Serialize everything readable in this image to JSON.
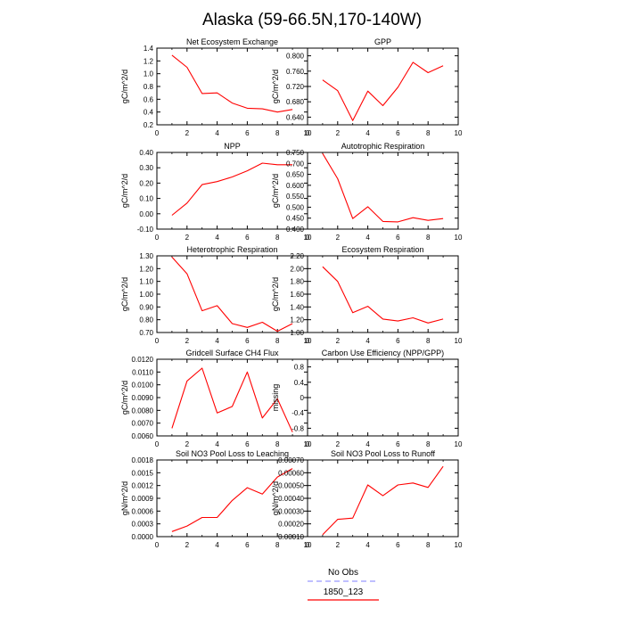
{
  "title": "Alaska (59-66.5N,170-140W)",
  "legend": {
    "entries": [
      {
        "label": "No Obs",
        "color": "#9999ff",
        "dashed": true
      },
      {
        "label": "1850_123",
        "color": "#ff0000",
        "dashed": false
      }
    ]
  },
  "chart_data": [
    {
      "type": "line",
      "title": "Net Ecosystem Exchange",
      "ylabel": "gC/m^2/d",
      "xlabel": "",
      "xlim": [
        0,
        10
      ],
      "ylim": [
        0.2,
        1.4
      ],
      "xticks": [
        "0",
        "2",
        "4",
        "6",
        "8",
        "10"
      ],
      "yticks": [
        "0.2",
        "0.4",
        "0.6",
        "0.8",
        "1.0",
        "1.2",
        "1.4"
      ],
      "x": [
        1,
        2,
        3,
        4,
        5,
        6,
        7,
        8,
        9
      ],
      "series": [
        {
          "color": "#ff0000",
          "values": [
            1.29,
            1.1,
            0.69,
            0.7,
            0.54,
            0.46,
            0.45,
            0.4,
            0.44
          ]
        }
      ],
      "legend": "bottom-center"
    },
    {
      "type": "line",
      "title": "GPP",
      "ylabel": "gC/m^2/d",
      "xlabel": "",
      "xlim": [
        0,
        10
      ],
      "ylim": [
        0.62,
        0.82
      ],
      "xticks": [
        "0",
        "2",
        "4",
        "6",
        "8",
        "10"
      ],
      "yticks": [
        "0.640",
        "0.680",
        "0.720",
        "0.760",
        "0.800"
      ],
      "x": [
        1,
        2,
        3,
        4,
        5,
        6,
        7,
        8,
        9
      ],
      "series": [
        {
          "color": "#ff0000",
          "values": [
            0.737,
            0.709,
            0.631,
            0.708,
            0.67,
            0.718,
            0.783,
            0.756,
            0.774
          ]
        }
      ],
      "legend": "bottom-center"
    },
    {
      "type": "line",
      "title": "NPP",
      "ylabel": "gC/m^2/d",
      "xlabel": "",
      "xlim": [
        0,
        10
      ],
      "ylim": [
        -0.1,
        0.4
      ],
      "xticks": [
        "0",
        "2",
        "4",
        "6",
        "8",
        "10"
      ],
      "yticks": [
        "-0.10",
        "0.00",
        "0.10",
        "0.20",
        "0.30",
        "0.40"
      ],
      "x": [
        1,
        2,
        3,
        4,
        5,
        6,
        7,
        8,
        9
      ],
      "series": [
        {
          "color": "#ff0000",
          "values": [
            -0.01,
            0.07,
            0.19,
            0.21,
            0.24,
            0.28,
            0.33,
            0.32,
            0.32
          ]
        }
      ],
      "legend": "bottom-center"
    },
    {
      "type": "line",
      "title": "Autotrophic Respiration",
      "ylabel": "gC/m^2/d",
      "xlabel": "",
      "xlim": [
        0,
        10
      ],
      "ylim": [
        0.4,
        0.75
      ],
      "xticks": [
        "0",
        "2",
        "4",
        "6",
        "8",
        "10"
      ],
      "yticks": [
        "0.400",
        "0.450",
        "0.500",
        "0.550",
        "0.600",
        "0.650",
        "0.700",
        "0.750"
      ],
      "x": [
        1,
        2,
        3,
        4,
        5,
        6,
        7,
        8,
        9
      ],
      "series": [
        {
          "color": "#ff0000",
          "values": [
            0.745,
            0.63,
            0.448,
            0.502,
            0.435,
            0.433,
            0.452,
            0.44,
            0.448
          ]
        }
      ],
      "legend": "bottom-center"
    },
    {
      "type": "line",
      "title": "Heterotrophic Respiration",
      "ylabel": "gC/m^2/d",
      "xlabel": "",
      "xlim": [
        0,
        10
      ],
      "ylim": [
        0.7,
        1.3
      ],
      "xticks": [
        "0",
        "2",
        "4",
        "6",
        "8",
        "10"
      ],
      "yticks": [
        "0.70",
        "0.80",
        "0.90",
        "1.00",
        "1.10",
        "1.20",
        "1.30"
      ],
      "x": [
        1,
        2,
        3,
        4,
        5,
        6,
        7,
        8,
        9
      ],
      "series": [
        {
          "color": "#ff0000",
          "values": [
            1.29,
            1.16,
            0.87,
            0.91,
            0.77,
            0.74,
            0.78,
            0.71,
            0.77
          ]
        }
      ],
      "legend": "bottom-center"
    },
    {
      "type": "line",
      "title": "Ecosystem Respiration",
      "ylabel": "gC/m^2/d",
      "xlabel": "",
      "xlim": [
        0,
        10
      ],
      "ylim": [
        1.0,
        2.2
      ],
      "xticks": [
        "0",
        "2",
        "4",
        "6",
        "8",
        "10"
      ],
      "yticks": [
        "1.00",
        "1.20",
        "1.40",
        "1.60",
        "1.80",
        "2.00",
        "2.20"
      ],
      "x": [
        1,
        2,
        3,
        4,
        5,
        6,
        7,
        8,
        9
      ],
      "series": [
        {
          "color": "#ff0000",
          "values": [
            2.03,
            1.8,
            1.31,
            1.41,
            1.21,
            1.18,
            1.23,
            1.15,
            1.21
          ]
        }
      ],
      "legend": "bottom-center"
    },
    {
      "type": "line",
      "title": "Gridcell Surface CH4 Flux",
      "ylabel": "gC/m^2/d",
      "xlabel": "",
      "xlim": [
        0,
        10
      ],
      "ylim": [
        0.006,
        0.012
      ],
      "xticks": [
        "0",
        "2",
        "4",
        "6",
        "8",
        "10"
      ],
      "yticks": [
        "0.0060",
        "0.0070",
        "0.0080",
        "0.0090",
        "0.0100",
        "0.0110",
        "0.0120"
      ],
      "x": [
        1,
        2,
        3,
        4,
        5,
        6,
        7,
        8,
        9
      ],
      "series": [
        {
          "color": "#ff0000",
          "values": [
            0.0066,
            0.0103,
            0.0113,
            0.0078,
            0.0083,
            0.011,
            0.0074,
            0.0089,
            0.0063
          ]
        }
      ],
      "legend": "bottom-center"
    },
    {
      "type": "line",
      "title": "Carbon Use Efficiency (NPP/GPP)",
      "ylabel": "missing",
      "xlabel": "",
      "xlim": [
        0,
        10
      ],
      "ylim": [
        -1.0,
        1.0
      ],
      "xticks": [
        "0",
        "2",
        "4",
        "6",
        "8",
        "10"
      ],
      "yticks": [
        "-0.8",
        "-0.4",
        "0",
        "0.4",
        "0.8"
      ],
      "x": [],
      "series": [],
      "legend": "bottom-center"
    },
    {
      "type": "line",
      "title": "Soil NO3 Pool Loss to Leaching",
      "ylabel": "gN/m^2/d",
      "xlabel": "",
      "xlim": [
        0,
        10
      ],
      "ylim": [
        0,
        0.0018
      ],
      "xticks": [
        "0",
        "2",
        "4",
        "6",
        "8",
        "10"
      ],
      "yticks": [
        "0.0000",
        "0.0003",
        "0.0006",
        "0.0009",
        "0.0012",
        "0.0015",
        "0.0018"
      ],
      "x": [
        1,
        2,
        3,
        4,
        5,
        6,
        7,
        8,
        9
      ],
      "series": [
        {
          "color": "#ff0000",
          "values": [
            0.00012,
            0.00025,
            0.00045,
            0.00045,
            0.00085,
            0.00115,
            0.001,
            0.0014,
            0.0016
          ]
        }
      ],
      "legend": "bottom-center"
    },
    {
      "type": "line",
      "title": "Soil NO3 Pool Loss to Runoff",
      "ylabel": "gN/m^2/d",
      "xlabel": "",
      "xlim": [
        0,
        10
      ],
      "ylim": [
        0.0001,
        0.0007
      ],
      "xticks": [
        "0",
        "2",
        "4",
        "6",
        "8",
        "10"
      ],
      "yticks": [
        "0.00010",
        "0.00020",
        "0.00030",
        "0.00040",
        "0.00050",
        "0.00060",
        "0.00070"
      ],
      "x": [
        1,
        2,
        3,
        4,
        5,
        6,
        7,
        8,
        9
      ],
      "series": [
        {
          "color": "#ff0000",
          "values": [
            0.000115,
            0.000235,
            0.000245,
            0.000505,
            0.00042,
            0.000505,
            0.00052,
            0.000485,
            0.00065
          ]
        }
      ],
      "legend": "bottom-center"
    }
  ]
}
